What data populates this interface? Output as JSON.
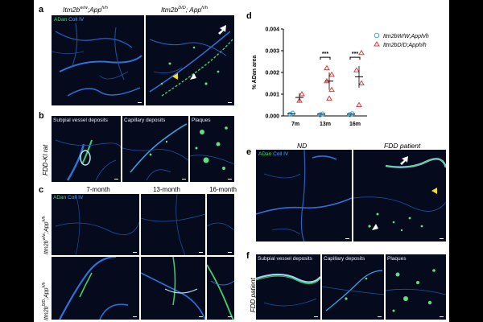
{
  "panel_letters": {
    "a": "a",
    "b": "b",
    "c": "c",
    "d": "d",
    "e": "e",
    "f": "f"
  },
  "panel_a": {
    "headers": [
      "Itm2b",
      "Itm2b"
    ],
    "header_full": [
      "Itm2bw/w;Apph/h",
      "Itm2bD/D; Apph/h"
    ],
    "legend": {
      "green": "ADan",
      "blue": "Coll IV"
    }
  },
  "panel_b": {
    "side_label": "FDD-KI rat",
    "tiles": [
      "Subpial vessel deposits",
      "Capillary deposits",
      "Plaques"
    ]
  },
  "panel_c": {
    "columns": [
      "7-month",
      "13-month",
      "16-month"
    ],
    "legend": {
      "green": "ADan",
      "blue": "Coll IV"
    },
    "rows": [
      "Itm2bw/w;Apph/h",
      "Itm2bD/D;Apph/h"
    ]
  },
  "panel_e": {
    "columns": [
      "ND",
      "FDD patient"
    ],
    "legend": {
      "green": "ADan",
      "blue": "Coll IV"
    }
  },
  "panel_f": {
    "side_label": "FDD patient",
    "tiles": [
      "Subpial vessel deposits",
      "Capillary deposits",
      "Plaques"
    ]
  },
  "chart_data": {
    "type": "scatter",
    "ylabel": "% ADan area",
    "categories": [
      "7m",
      "13m",
      "16m"
    ],
    "ylim": [
      0,
      0.004
    ],
    "yticks": [
      "0.000",
      "0.001",
      "0.002",
      "0.003",
      "0.004"
    ],
    "significance": [
      "***",
      "***"
    ],
    "series": [
      {
        "name": "Itm2bW/W;Apph/h",
        "marker": "circle",
        "color": "#3aa8e0",
        "values": [
          [
            8e-05,
            0.00012
          ],
          [
            5e-05,
            9e-05
          ],
          [
            6e-05,
            0.0001
          ]
        ]
      },
      {
        "name": "Itm2bD/D;Apph/h",
        "marker": "triangle",
        "color": "#e03a3a",
        "values": [
          [
            0.0007,
            0.001
          ],
          [
            0.0008,
            0.0012,
            0.0016,
            0.0019,
            0.0022
          ],
          [
            0.0005,
            0.0015,
            0.0021,
            0.0029
          ]
        ]
      }
    ],
    "means": {
      "wt": [
        0.0001,
        8e-05,
        8e-05
      ],
      "ki": [
        0.00085,
        0.0016,
        0.0018
      ]
    },
    "legend_position": "top-right"
  }
}
